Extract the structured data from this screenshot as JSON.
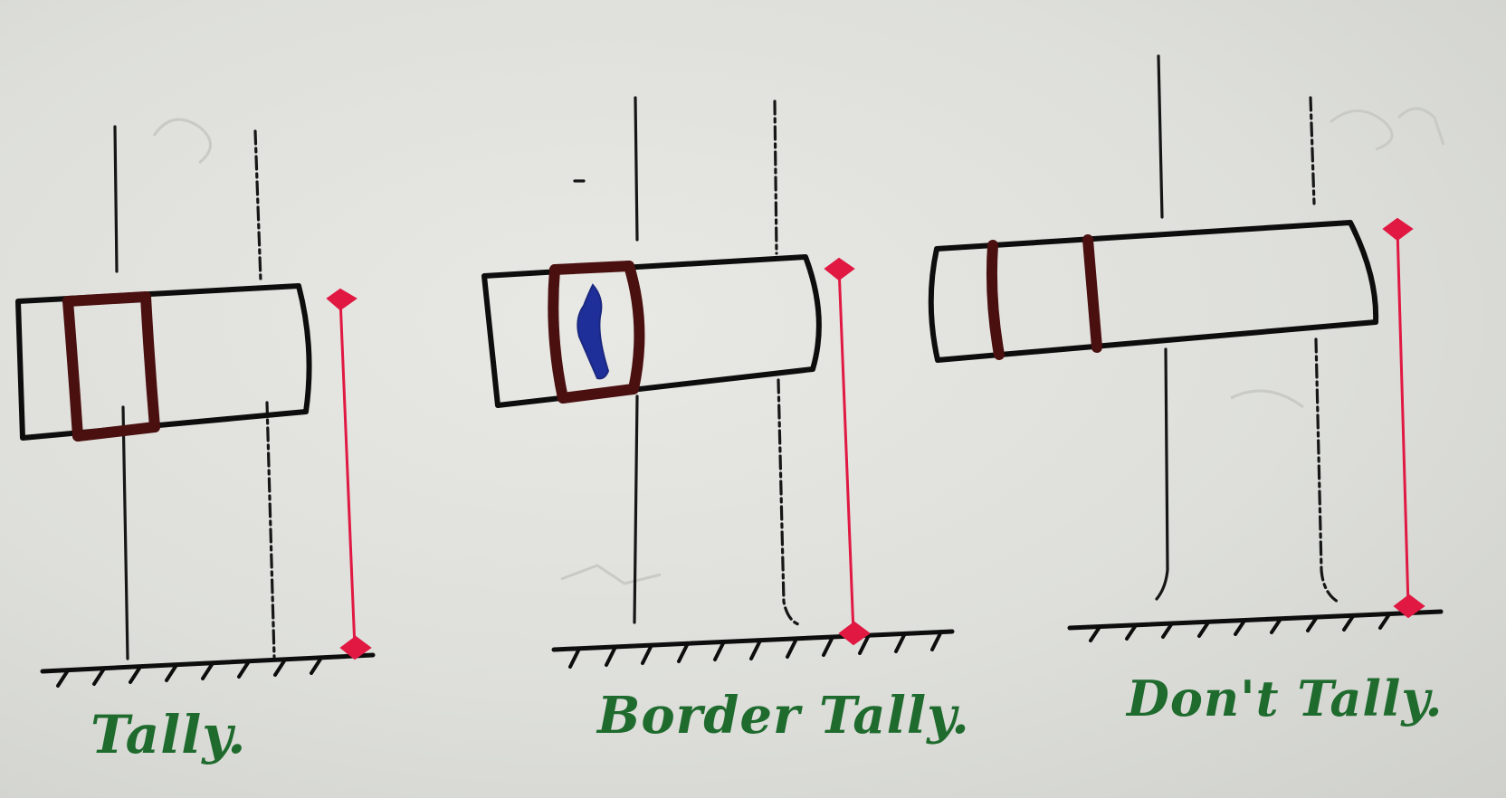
{
  "captions": {
    "tally": "Tally.",
    "border_tally": "Border Tally.",
    "dont_tally": "Don't Tally."
  },
  "colors": {
    "paper": "#dcdcd8",
    "ink": "#0d0d0d",
    "band": "#4a1010",
    "measure_arrow": "#e01842",
    "caption_green": "#1f6b2e",
    "mark_blue": "#1f2f9a"
  }
}
